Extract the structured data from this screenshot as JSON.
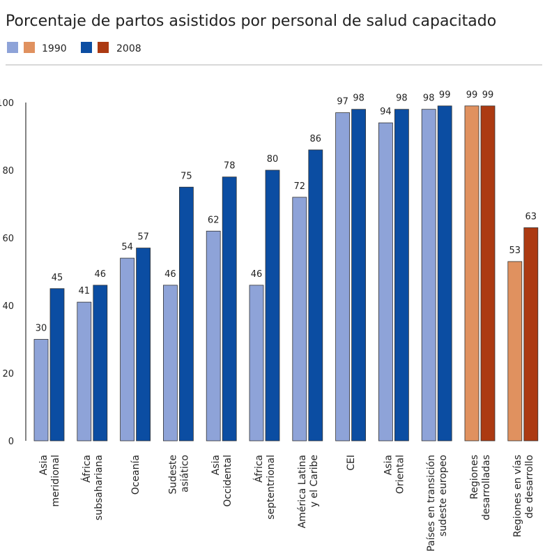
{
  "chart_data": {
    "type": "bar",
    "title": "Porcentaje de partos asistidos por personal de salud capacitado",
    "legend": {
      "placement": "top-left",
      "entries": [
        "1990",
        "2008"
      ]
    },
    "colors": {
      "1990": "#8ea3d8",
      "2008": "#0b4da2",
      "1990_regions": "#e0915f",
      "2008_regions": "#ac3a12"
    },
    "ylim": [
      0,
      100
    ],
    "yticks": [
      0,
      20,
      40,
      60,
      80,
      100
    ],
    "grid": false,
    "categories": [
      [
        "Asia",
        "meridional"
      ],
      [
        "África",
        "subsahariana"
      ],
      [
        "Oceanía"
      ],
      [
        "Sudeste",
        "asiático"
      ],
      [
        "Asia",
        "Occidental"
      ],
      [
        "África",
        "septentrional"
      ],
      [
        "América Latina",
        "y el Caribe"
      ],
      [
        "CEI"
      ],
      [
        "Asia",
        "Oriental"
      ],
      [
        "Países en transición",
        "sudeste europeo"
      ],
      [
        "Regiones",
        "desarrolladas"
      ],
      [
        "Regiones en vías",
        "de desarrollo"
      ]
    ],
    "series": [
      {
        "name": "1990",
        "values": [
          30,
          41,
          54,
          46,
          62,
          46,
          72,
          97,
          94,
          98,
          99,
          53
        ]
      },
      {
        "name": "2008",
        "values": [
          45,
          46,
          57,
          75,
          78,
          80,
          86,
          98,
          98,
          99,
          99,
          63
        ]
      }
    ],
    "region_categories": [
      10,
      11
    ]
  }
}
